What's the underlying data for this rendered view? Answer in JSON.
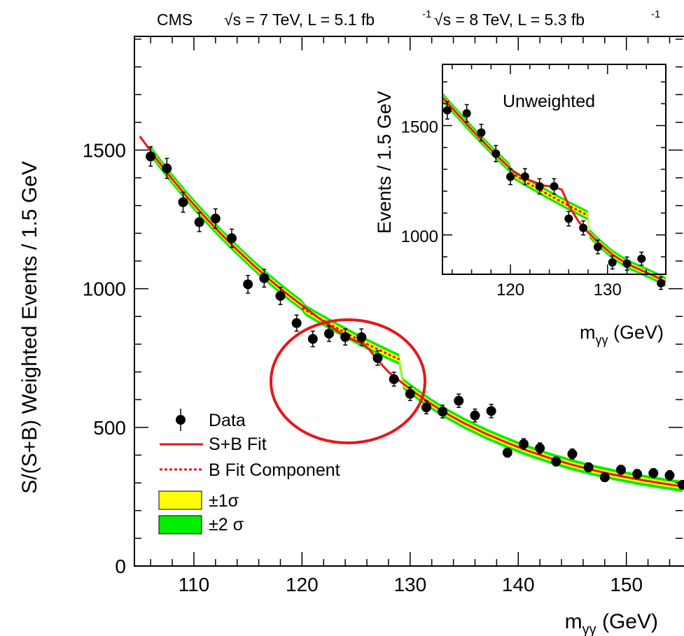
{
  "header": {
    "experiment": "CMS",
    "run1_energy": "√s = 7 TeV, L = 5.1 fb",
    "run1_exp": "-1",
    "run2_energy": " √s = 8 TeV, L = 5.3 fb",
    "run2_exp": "-1"
  },
  "colors": {
    "fit": "#e8161b",
    "band1": "#ffff00",
    "band2": "#00ee00",
    "data": "#000000",
    "highlight": "#e8161b"
  },
  "chart_data": [
    {
      "type": "scatter",
      "name": "main",
      "xlabel": "m",
      "xlabel_sub": "γγ",
      "xlabel_unit": " (GeV)",
      "ylabel": "S/(S+B) Weighted Events / 1.5 GeV",
      "xlim": [
        104.5,
        155.2
      ],
      "ylim": [
        0,
        1910
      ],
      "x_ticks": [
        110,
        120,
        130,
        140,
        150
      ],
      "y_ticks": [
        0,
        500,
        1000,
        1500
      ],
      "grid": false,
      "legend_position": "bottom-left",
      "annotation": "red ellipse around the excess near 125 GeV",
      "data": {
        "x": [
          106.0,
          107.5,
          109.0,
          110.5,
          112.0,
          113.5,
          115.0,
          116.5,
          118.0,
          119.5,
          121.0,
          122.5,
          124.0,
          125.5,
          127.0,
          128.5,
          130.0,
          131.5,
          133.0,
          134.5,
          136.0,
          137.5,
          139.0,
          140.5,
          142.0,
          143.5,
          145.0,
          146.5,
          148.0,
          149.5,
          151.0,
          152.5,
          154.0,
          155.2
        ],
        "y": [
          1477,
          1434,
          1312,
          1240,
          1253,
          1182,
          1016,
          1038,
          974,
          876,
          819,
          838,
          826,
          825,
          750,
          674,
          621,
          572,
          557,
          596,
          543,
          559,
          409,
          440,
          425,
          377,
          404,
          356,
          320,
          347,
          332,
          335,
          327,
          293
        ],
        "yerr": [
          35,
          36,
          36,
          34,
          35,
          33,
          32,
          32,
          31,
          29,
          28,
          28,
          29,
          30,
          26,
          25,
          24,
          23,
          23,
          24,
          23,
          24,
          16,
          19,
          19,
          16,
          18,
          16,
          15,
          16,
          16,
          16,
          17,
          14
        ]
      },
      "sb_fit": {
        "x": [
          105.0,
          106.5,
          108.0,
          109.5,
          111.0,
          112.5,
          114.0,
          115.5,
          117.0,
          118.5,
          120.0,
          121.5,
          122.5,
          123.5,
          124.3,
          125.0,
          125.6,
          126.2,
          127.0,
          128.0,
          129.0,
          130.5,
          132.0,
          133.5,
          135.0,
          137.0,
          139.0,
          141.0,
          143.0,
          145.0,
          147.0,
          149.0,
          151.0,
          153.0,
          155.2
        ],
        "y": [
          1550,
          1470,
          1395,
          1325,
          1260,
          1198,
          1140,
          1085,
          1033,
          985,
          940,
          896,
          868,
          842,
          823,
          812,
          804,
          782,
          742,
          700,
          668,
          624,
          583,
          547,
          515,
          477,
          444,
          414,
          388,
          365,
          345,
          328,
          313,
          300,
          287
        ]
      },
      "b_fit": {
        "x": [
          120.0,
          121.0,
          122.0,
          123.0,
          124.0,
          125.0,
          126.0,
          127.0,
          128.0,
          129.0
        ],
        "y": [
          930,
          907,
          885,
          863,
          842,
          821,
          801,
          782,
          763,
          745
        ]
      },
      "band_1sigma_halfwidth": 10,
      "band_2sigma_halfwidth": 20,
      "legend": [
        "Data",
        "S+B Fit",
        "B Fit Component",
        "±1σ",
        "±2 σ"
      ]
    },
    {
      "type": "scatter",
      "name": "inset",
      "title": "Unweighted",
      "xlabel": "m",
      "xlabel_sub": "γγ",
      "xlabel_unit": " (GeV)",
      "ylabel": "Events / 1.5 GeV",
      "xlim": [
        113.0,
        136.0
      ],
      "ylim": [
        820,
        1780
      ],
      "x_ticks": [
        120,
        130
      ],
      "y_ticks": [
        1000,
        1500
      ],
      "data": {
        "x": [
          113.5,
          115.5,
          117.0,
          118.5,
          120.0,
          121.5,
          123.0,
          124.5,
          126.0,
          127.5,
          129.0,
          130.5,
          132.0,
          133.5,
          135.5
        ],
        "y": [
          1570,
          1556,
          1468,
          1372,
          1266,
          1267,
          1222,
          1222,
          1074,
          1032,
          945,
          874,
          869,
          891,
          779
        ],
        "yerr": [
          40,
          40,
          38,
          37,
          36,
          36,
          35,
          35,
          33,
          32,
          31,
          30,
          30,
          30,
          28
        ]
      },
      "sb_fit": {
        "x": [
          113.0,
          114.5,
          116.0,
          117.5,
          119.0,
          120.5,
          122.0,
          123.5,
          124.5,
          125.3,
          126.0,
          127.0,
          128.0,
          129.0,
          130.5,
          132.0,
          133.5,
          135.0,
          136.0
        ],
        "y": [
          1630,
          1555,
          1482,
          1412,
          1345,
          1283,
          1250,
          1225,
          1220,
          1207,
          1135,
          1062,
          1012,
          968,
          910,
          868,
          838,
          808,
          785
        ]
      },
      "b_fit": {
        "x": [
          120.0,
          121.0,
          122.0,
          123.0,
          124.0,
          125.0,
          126.0,
          127.0,
          128.0
        ],
        "y": [
          1285,
          1258,
          1232,
          1207,
          1182,
          1158,
          1134,
          1111,
          1089
        ]
      },
      "band_1sigma_halfwidth": 11,
      "band_2sigma_halfwidth": 22
    }
  ]
}
